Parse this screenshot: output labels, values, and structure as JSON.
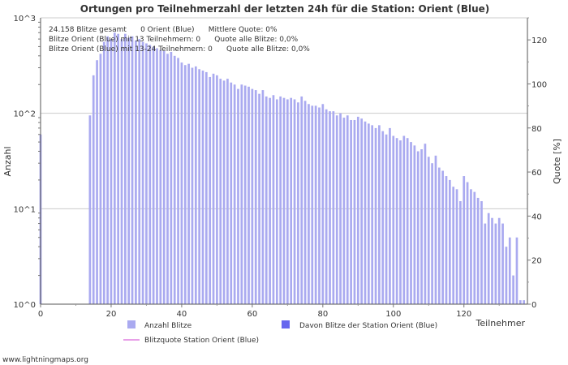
{
  "chart_data": {
    "type": "bar",
    "title": "Ortungen pro Teilnehmerzahl der letzten 24h für die Station: Orient (Blue)",
    "xlabel": "Teilnehmer",
    "ylabel": "Anzahl",
    "y2label": "Quote [%]",
    "xlim": [
      0,
      138
    ],
    "x_ticks": [
      0,
      20,
      40,
      60,
      80,
      100,
      120
    ],
    "y_scale": "log",
    "ylim": [
      1,
      1000
    ],
    "y_ticks": [
      {
        "value": 1,
        "label": "10^0"
      },
      {
        "value": 10,
        "label": "10^1"
      },
      {
        "value": 100,
        "label": "10^2"
      },
      {
        "value": 1000,
        "label": "10^3"
      }
    ],
    "y2lim": [
      0,
      130
    ],
    "y2_ticks": [
      0,
      20,
      40,
      60,
      80,
      100,
      120
    ],
    "series": [
      {
        "name": "Anzahl Blitze",
        "color": "#aaaaf0",
        "points": [
          [
            0,
            60
          ],
          [
            14,
            95
          ],
          [
            15,
            250
          ],
          [
            16,
            360
          ],
          [
            17,
            420
          ],
          [
            18,
            560
          ],
          [
            19,
            640
          ],
          [
            20,
            600
          ],
          [
            21,
            700
          ],
          [
            22,
            680
          ],
          [
            23,
            600
          ],
          [
            24,
            680
          ],
          [
            25,
            620
          ],
          [
            26,
            640
          ],
          [
            27,
            580
          ],
          [
            28,
            600
          ],
          [
            29,
            560
          ],
          [
            30,
            540
          ],
          [
            31,
            520
          ],
          [
            32,
            500
          ],
          [
            33,
            480
          ],
          [
            34,
            460
          ],
          [
            35,
            450
          ],
          [
            36,
            420
          ],
          [
            37,
            440
          ],
          [
            38,
            400
          ],
          [
            39,
            380
          ],
          [
            40,
            340
          ],
          [
            41,
            320
          ],
          [
            42,
            330
          ],
          [
            43,
            300
          ],
          [
            44,
            310
          ],
          [
            45,
            290
          ],
          [
            46,
            280
          ],
          [
            47,
            270
          ],
          [
            48,
            240
          ],
          [
            49,
            260
          ],
          [
            50,
            250
          ],
          [
            51,
            230
          ],
          [
            52,
            220
          ],
          [
            53,
            230
          ],
          [
            54,
            210
          ],
          [
            55,
            200
          ],
          [
            56,
            180
          ],
          [
            57,
            200
          ],
          [
            58,
            195
          ],
          [
            59,
            190
          ],
          [
            60,
            180
          ],
          [
            61,
            175
          ],
          [
            62,
            160
          ],
          [
            63,
            175
          ],
          [
            64,
            150
          ],
          [
            65,
            145
          ],
          [
            66,
            155
          ],
          [
            67,
            140
          ],
          [
            68,
            150
          ],
          [
            69,
            145
          ],
          [
            70,
            140
          ],
          [
            71,
            145
          ],
          [
            72,
            140
          ],
          [
            73,
            130
          ],
          [
            74,
            150
          ],
          [
            75,
            135
          ],
          [
            76,
            125
          ],
          [
            77,
            120
          ],
          [
            78,
            120
          ],
          [
            79,
            115
          ],
          [
            80,
            125
          ],
          [
            81,
            110
          ],
          [
            82,
            105
          ],
          [
            83,
            105
          ],
          [
            84,
            95
          ],
          [
            85,
            100
          ],
          [
            86,
            90
          ],
          [
            87,
            95
          ],
          [
            88,
            85
          ],
          [
            89,
            85
          ],
          [
            90,
            92
          ],
          [
            91,
            88
          ],
          [
            92,
            82
          ],
          [
            93,
            78
          ],
          [
            94,
            75
          ],
          [
            95,
            70
          ],
          [
            96,
            75
          ],
          [
            97,
            65
          ],
          [
            98,
            60
          ],
          [
            99,
            70
          ],
          [
            100,
            58
          ],
          [
            101,
            55
          ],
          [
            102,
            52
          ],
          [
            103,
            58
          ],
          [
            104,
            55
          ],
          [
            105,
            50
          ],
          [
            106,
            46
          ],
          [
            107,
            40
          ],
          [
            108,
            42
          ],
          [
            109,
            48
          ],
          [
            110,
            35
          ],
          [
            111,
            30
          ],
          [
            112,
            36
          ],
          [
            113,
            27
          ],
          [
            114,
            25
          ],
          [
            115,
            22
          ],
          [
            116,
            20
          ],
          [
            117,
            17
          ],
          [
            118,
            16
          ],
          [
            119,
            12
          ],
          [
            120,
            22
          ],
          [
            121,
            19
          ],
          [
            122,
            16
          ],
          [
            123,
            15
          ],
          [
            124,
            13
          ],
          [
            125,
            12
          ],
          [
            126,
            7
          ],
          [
            127,
            9
          ],
          [
            128,
            8
          ],
          [
            129,
            7
          ],
          [
            130,
            8
          ],
          [
            131,
            7
          ],
          [
            132,
            4
          ],
          [
            133,
            5
          ],
          [
            134,
            2
          ],
          [
            135,
            5
          ],
          [
            136,
            1.1
          ],
          [
            137,
            1.1
          ]
        ]
      },
      {
        "name": "Davon Blitze der Station Orient (Blue)",
        "color": "#6666ee",
        "points": []
      },
      {
        "name": "Blitzquote Station Orient (Blue)",
        "color": "#e080e0",
        "points": []
      }
    ],
    "annotations": [
      "24.158 Blitze gesamt      0 Orient (Blue)      Mittlere Quote: 0%",
      "Blitze Orient (Blue) mit 13 Teilnehmern: 0      Quote alle Blitze: 0,0%",
      "Blitze Orient (Blue) mit 13-24 Teilnehmern: 0      Quote alle Blitze: 0,0%"
    ]
  },
  "footer": "www.lightningmaps.org"
}
